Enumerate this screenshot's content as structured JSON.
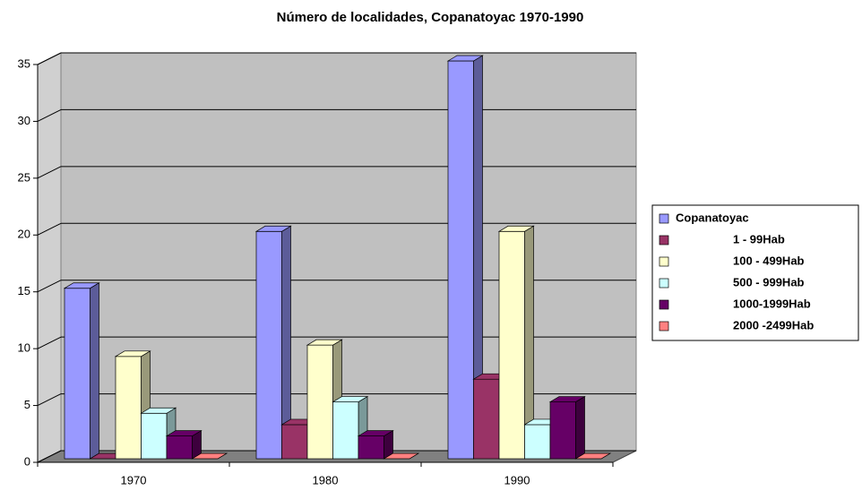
{
  "chart_data": {
    "type": "bar3d",
    "title": "Número de localidades, Copanatoyac 1970-1990",
    "categories": [
      "1970",
      "1980",
      "1990"
    ],
    "series": [
      {
        "name": "Copanatoyac",
        "color": "#9999ff",
        "values": [
          15,
          20,
          35
        ]
      },
      {
        "name": "1 - 99Hab",
        "color": "#993366",
        "values": [
          0,
          3,
          7
        ]
      },
      {
        "name": "100 - 499Hab",
        "color": "#ffffcc",
        "values": [
          9,
          10,
          20
        ]
      },
      {
        "name": "500 - 999Hab",
        "color": "#ccffff",
        "values": [
          4,
          5,
          3
        ]
      },
      {
        "name": "1000-1999Hab",
        "color": "#660066",
        "values": [
          2,
          2,
          5
        ]
      },
      {
        "name": "2000 -2499Hab",
        "color": "#ff8080",
        "values": [
          0,
          0,
          0
        ]
      }
    ],
    "ylim": [
      0,
      35
    ],
    "yticks": [
      0,
      5,
      10,
      15,
      20,
      25,
      30,
      35
    ],
    "grid": true,
    "legend": "right"
  }
}
